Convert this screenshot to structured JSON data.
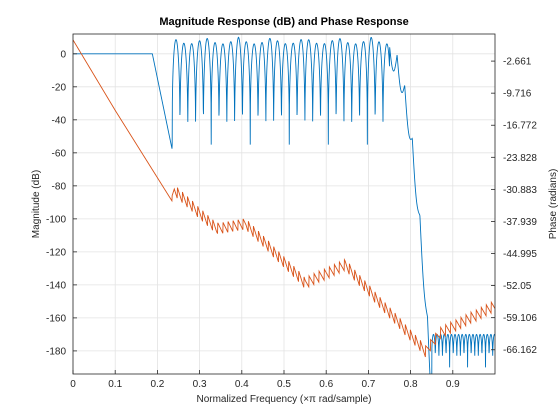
{
  "chart_data": {
    "type": "line",
    "title": "Magnitude Response (dB) and Phase Response",
    "xlabel": "Normalized Frequency (×π rad/sample)",
    "ylabel_left": "Magnitude (dB)",
    "ylabel_right": "Phase (radians)",
    "xlim": [
      0,
      1
    ],
    "ylim_left": [
      -194,
      12
    ],
    "ylim_right": [
      -71.5,
      3.3
    ],
    "x_ticks": [
      "0",
      "0.1",
      "0.2",
      "0.3",
      "0.4",
      "0.5",
      "0.6",
      "0.7",
      "0.8",
      "0.9"
    ],
    "y_ticks_left": [
      "0",
      "-20",
      "-40",
      "-60",
      "-80",
      "-100",
      "-120",
      "-140",
      "-160",
      "-180"
    ],
    "y_ticks_right": [
      "-2.661",
      "-9.716",
      "-16.772",
      "-23.828",
      "-30.883",
      "-37.939",
      "-44.995",
      "-52.05",
      "-59.106",
      "-66.162"
    ],
    "grid": true,
    "legend": "none",
    "series": [
      {
        "axis": "left",
        "color": "#0072BD",
        "passband_edge": 0.2,
        "stopband_start": 0.235,
        "stopband_end": 0.75,
        "transition_end": 0.85,
        "stopband_peak_db": 10,
        "ripple_trough_db": -55,
        "deep_floor_db": -190,
        "deep_lobe_top_db": -170
      },
      {
        "axis": "right",
        "color": "#D95319",
        "points": [
          [
            0,
            2.0
          ],
          [
            0.1,
            -13.5
          ],
          [
            0.235,
            -33.5
          ],
          [
            0.24,
            -31.0
          ],
          [
            0.34,
            -39.5
          ],
          [
            0.41,
            -38.5
          ],
          [
            0.55,
            -51.5
          ],
          [
            0.645,
            -47.5
          ],
          [
            0.835,
            -66.5
          ],
          [
            0.87,
            -62.5
          ],
          [
            1.0,
            -56.5
          ]
        ],
        "sawtooth_from": 0.235,
        "sawtooth_period": 0.012,
        "sawtooth_drop": 2.5
      }
    ]
  }
}
